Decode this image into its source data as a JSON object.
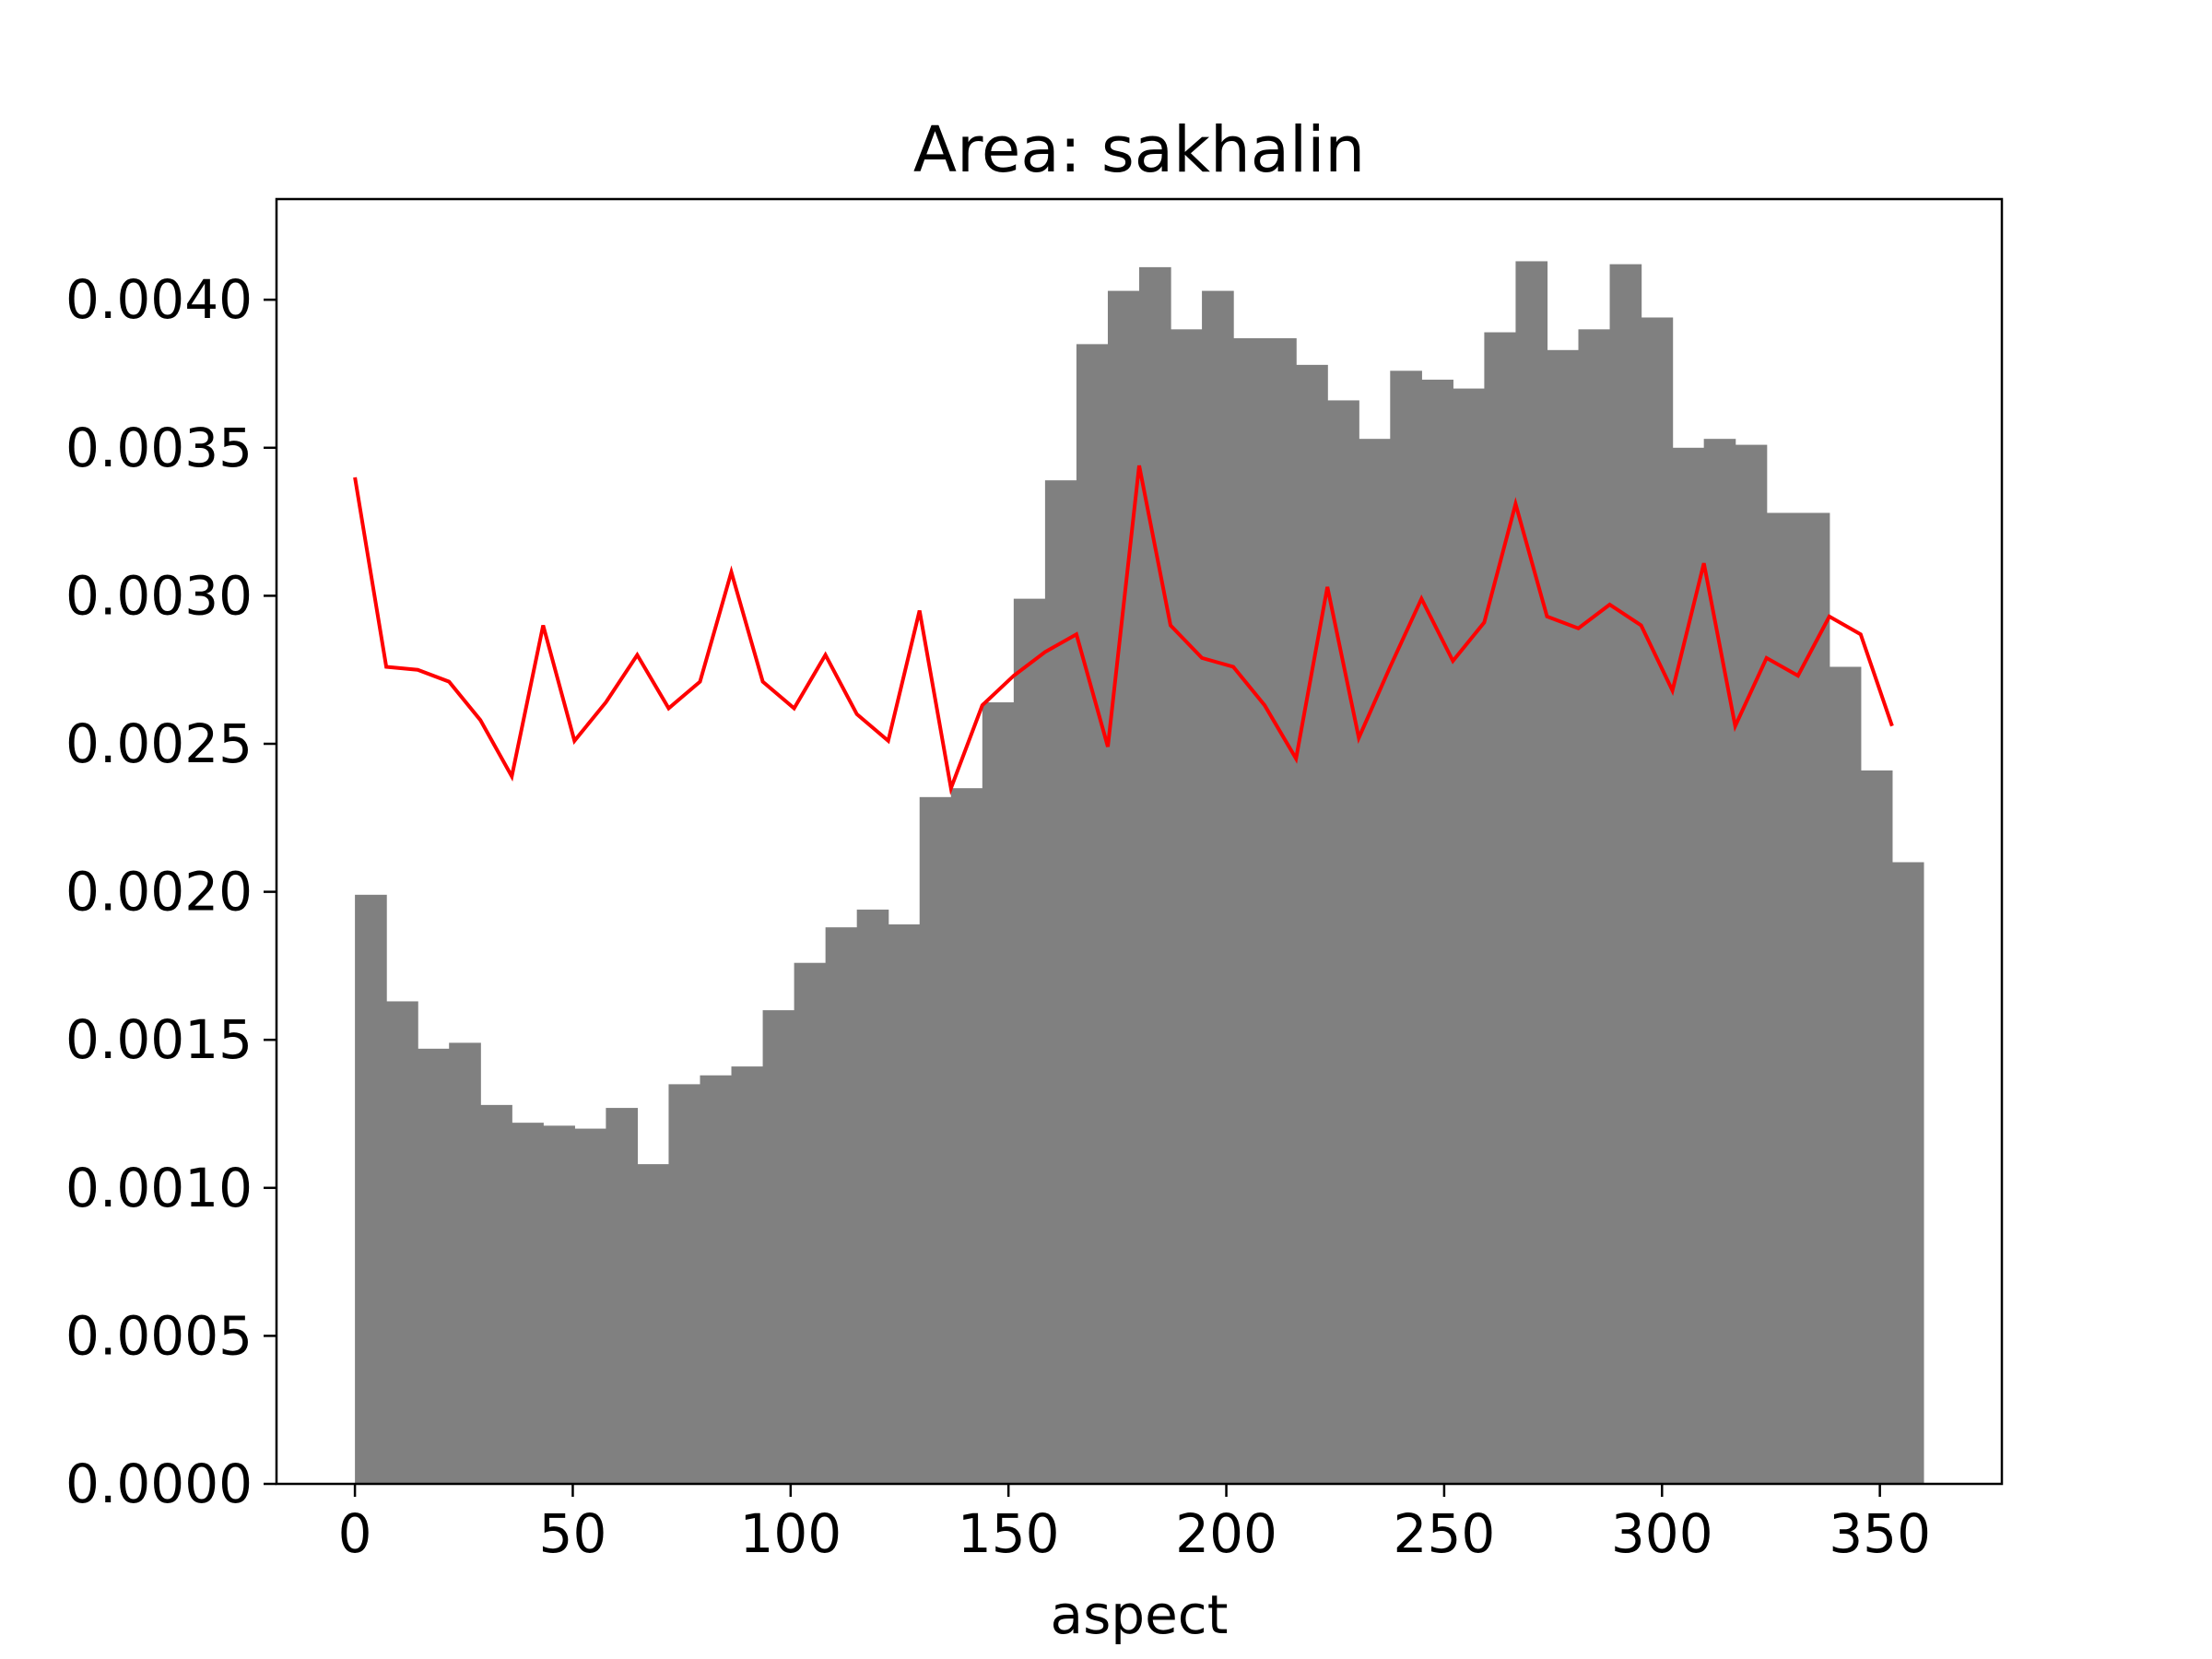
{
  "chart_data": {
    "type": "bar",
    "title": "Area: sakhalin",
    "xlabel": "aspect",
    "ylabel": "",
    "xlim": [
      -18,
      378
    ],
    "ylim": [
      0,
      0.00434
    ],
    "xticks": [
      0,
      50,
      100,
      150,
      200,
      250,
      300,
      350
    ],
    "xtick_labels": [
      "0",
      "50",
      "100",
      "150",
      "200",
      "250",
      "300",
      "350"
    ],
    "yticks": [
      0,
      0.0005,
      0.001,
      0.0015,
      0.002,
      0.0025,
      0.003,
      0.0035,
      0.004
    ],
    "ytick_labels": [
      "0.0000",
      "0.0005",
      "0.0010",
      "0.0015",
      "0.0020",
      "0.0025",
      "0.0030",
      "0.0035",
      "0.0040"
    ],
    "grid": false,
    "bar_color": "#808080",
    "line_color": "#ff0000",
    "series": [
      {
        "kind": "histogram",
        "bin_edges": [
          0,
          7.2,
          14.4,
          21.6,
          28.8,
          36,
          43.2,
          50.4,
          57.6,
          64.8,
          72,
          79.2,
          86.4,
          93.6,
          100.8,
          108,
          115.2,
          122.4,
          129.6,
          136.8,
          144,
          151.2,
          158.4,
          165.6,
          172.8,
          180,
          187.2,
          194.4,
          201.6,
          208.8,
          216,
          223.2,
          230.4,
          237.6,
          244.8,
          252,
          259.2,
          266.4,
          273.6,
          280.8,
          288,
          295.2,
          302.4,
          309.6,
          316.8,
          324,
          331.2,
          338.4,
          345.6,
          352.8,
          360
        ],
        "values": [
          0.00199,
          0.00163,
          0.00147,
          0.00149,
          0.00128,
          0.00122,
          0.00121,
          0.0012,
          0.00127,
          0.00108,
          0.00135,
          0.00138,
          0.00141,
          0.0016,
          0.00176,
          0.00188,
          0.00194,
          0.00189,
          0.00232,
          0.00235,
          0.00264,
          0.00299,
          0.00339,
          0.00385,
          0.00403,
          0.00411,
          0.0039,
          0.00403,
          0.00387,
          0.00387,
          0.00378,
          0.00366,
          0.00353,
          0.00376,
          0.00373,
          0.0037,
          0.00389,
          0.00413,
          0.00383,
          0.0039,
          0.00412,
          0.00394,
          0.0035,
          0.00353,
          0.00351,
          0.00328,
          0.00328,
          0.00276,
          0.00241,
          0.0021
        ]
      },
      {
        "kind": "line",
        "x": [
          0,
          7.2,
          14.4,
          21.6,
          28.8,
          36,
          43.2,
          50.4,
          57.6,
          64.8,
          72,
          79.2,
          86.4,
          93.6,
          100.8,
          108,
          115.2,
          122.4,
          129.6,
          136.8,
          144,
          151.2,
          158.4,
          165.6,
          172.8,
          180,
          187.2,
          194.4,
          201.6,
          208.8,
          216,
          223.2,
          230.4,
          237.6,
          244.8,
          252,
          259.2,
          266.4,
          273.6,
          280.8,
          288,
          295.2,
          302.4,
          309.6,
          316.8,
          324,
          331.2,
          338.4,
          345.6,
          352.8
        ],
        "y": [
          0.0034,
          0.00276,
          0.00275,
          0.00271,
          0.00258,
          0.00239,
          0.0029,
          0.00251,
          0.00264,
          0.0028,
          0.00262,
          0.00271,
          0.00308,
          0.00271,
          0.00262,
          0.0028,
          0.0026,
          0.00251,
          0.00295,
          0.00235,
          0.00263,
          0.00273,
          0.00281,
          0.00287,
          0.00249,
          0.00344,
          0.0029,
          0.00279,
          0.00276,
          0.00263,
          0.00245,
          0.00303,
          0.00252,
          0.00276,
          0.00299,
          0.00278,
          0.00291,
          0.00331,
          0.00293,
          0.00289,
          0.00297,
          0.0029,
          0.00268,
          0.00311,
          0.00256,
          0.00279,
          0.00273,
          0.00293,
          0.00287,
          0.00256
        ]
      }
    ]
  }
}
